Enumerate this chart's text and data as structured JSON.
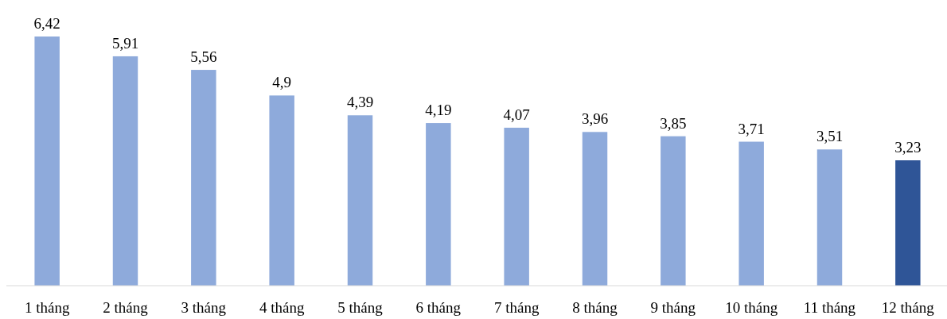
{
  "chart_data": {
    "type": "bar",
    "categories": [
      "1 tháng",
      "2 tháng",
      "3 tháng",
      "4 tháng",
      "5 tháng",
      "6 tháng",
      "7 tháng",
      "8 tháng",
      "9 tháng",
      "10 tháng",
      "11 tháng",
      "12 tháng"
    ],
    "values": [
      6.42,
      5.91,
      5.56,
      4.9,
      4.39,
      4.19,
      4.07,
      3.96,
      3.85,
      3.71,
      3.51,
      3.23
    ],
    "colors": [
      "#8eaadb",
      "#8eaadb",
      "#8eaadb",
      "#8eaadb",
      "#8eaadb",
      "#8eaadb",
      "#8eaadb",
      "#8eaadb",
      "#8eaadb",
      "#8eaadb",
      "#8eaadb",
      "#2f5597"
    ],
    "value_labels": [
      "6,42",
      "5,91",
      "5,56",
      "4,9",
      "4,39",
      "4,19",
      "4,07",
      "3,96",
      "3,85",
      "3,71",
      "3,51",
      "3,23"
    ]
  }
}
